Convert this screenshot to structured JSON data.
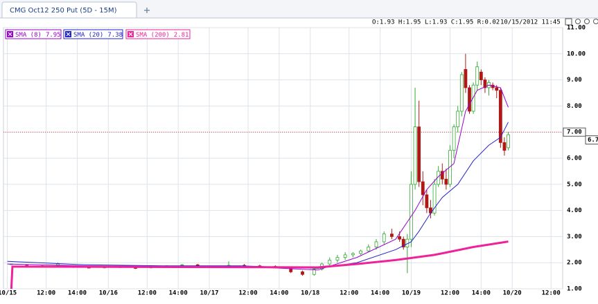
{
  "chart_data": {
    "type": "candlestick",
    "title": "CMG Oct12 250 Put (5D - 15M)",
    "info": "O:1.93 H:1.95 L:1.93 C:1.95 R:0.02",
    "date": "10/15/2012 11:45",
    "x": [
      1,
      5,
      9,
      13,
      17,
      21,
      25,
      29,
      33,
      37,
      41,
      45,
      49,
      53,
      57,
      61,
      65,
      69,
      73,
      76,
      79,
      81,
      83,
      85,
      87,
      89,
      91,
      93,
      95,
      97,
      99,
      101,
      102,
      103,
      104,
      105,
      106,
      107,
      108,
      109,
      110,
      111,
      112,
      113,
      114,
      115,
      116,
      117,
      118,
      119,
      120,
      121,
      122,
      123,
      124,
      125,
      126,
      127,
      128,
      129
    ],
    "open": [
      1.93,
      1.9,
      1.88,
      1.9,
      1.85,
      1.82,
      1.8,
      1.84,
      1.82,
      1.8,
      1.86,
      1.9,
      1.92,
      1.84,
      1.86,
      1.9,
      1.88,
      1.86,
      1.75,
      1.65,
      1.55,
      1.75,
      1.95,
      2.1,
      2.2,
      2.3,
      2.35,
      2.45,
      2.6,
      2.8,
      3.1,
      3.0,
      2.9,
      2.6,
      2.9,
      5.0,
      7.2,
      5.1,
      4.6,
      4.1,
      3.9,
      5.0,
      5.5,
      5.2,
      5.0,
      6.3,
      7.2,
      7.8,
      9.4,
      8.7,
      7.8,
      8.8,
      9.3,
      9.0,
      8.7,
      8.8,
      8.7,
      8.6,
      6.6,
      6.4
    ],
    "high": [
      1.95,
      1.92,
      1.9,
      2.0,
      1.9,
      1.85,
      1.86,
      1.88,
      1.85,
      1.9,
      1.9,
      1.95,
      1.95,
      1.88,
      2.05,
      1.95,
      1.92,
      1.9,
      1.8,
      1.7,
      1.8,
      2.0,
      2.2,
      2.3,
      2.4,
      2.4,
      2.5,
      2.7,
      2.9,
      3.2,
      3.3,
      3.2,
      3.0,
      3.1,
      5.5,
      8.7,
      8.2,
      5.5,
      4.8,
      4.4,
      5.2,
      5.7,
      5.8,
      5.6,
      6.5,
      7.3,
      8.0,
      9.3,
      10.0,
      8.8,
      8.9,
      9.7,
      9.4,
      9.1,
      9.0,
      8.9,
      8.8,
      8.7,
      6.8,
      7.0
    ],
    "low": [
      1.93,
      1.85,
      1.82,
      1.88,
      1.8,
      1.78,
      1.78,
      1.8,
      1.76,
      1.78,
      1.84,
      1.86,
      1.8,
      1.8,
      1.84,
      1.85,
      1.84,
      1.8,
      1.6,
      1.5,
      1.5,
      1.7,
      1.9,
      2.0,
      2.1,
      2.2,
      2.3,
      2.4,
      2.5,
      2.7,
      2.9,
      2.8,
      2.5,
      1.6,
      2.6,
      4.8,
      4.9,
      4.2,
      3.9,
      3.7,
      3.8,
      4.9,
      5.0,
      4.8,
      4.9,
      6.0,
      7.0,
      7.6,
      8.5,
      7.7,
      7.7,
      8.6,
      8.8,
      8.5,
      8.4,
      8.6,
      8.3,
      6.4,
      6.1,
      6.3
    ],
    "close": [
      1.95,
      1.88,
      1.85,
      1.95,
      1.82,
      1.8,
      1.84,
      1.82,
      1.78,
      1.86,
      1.88,
      1.92,
      1.84,
      1.86,
      1.9,
      1.88,
      1.86,
      1.82,
      1.65,
      1.55,
      1.75,
      1.95,
      2.1,
      2.2,
      2.3,
      2.35,
      2.45,
      2.6,
      2.8,
      3.1,
      3.0,
      2.9,
      2.6,
      2.9,
      5.0,
      7.2,
      5.1,
      4.6,
      4.1,
      3.9,
      5.0,
      5.5,
      5.2,
      5.0,
      6.3,
      7.2,
      7.8,
      9.2,
      8.7,
      7.8,
      8.8,
      9.5,
      9.0,
      8.7,
      8.9,
      8.7,
      8.6,
      6.6,
      6.3,
      6.9
    ],
    "up_color": "#33aa33",
    "down_color": "#b01818",
    "series": [
      {
        "name": "SMA (8)",
        "last": 7.95,
        "color": "#9900cc",
        "width": 1,
        "x": [
          0,
          20,
          40,
          60,
          80,
          90,
          100,
          105,
          108,
          111,
          115,
          118,
          121,
          124,
          127,
          129
        ],
        "values": [
          1.95,
          1.88,
          1.86,
          1.86,
          1.72,
          2.2,
          2.9,
          4.0,
          4.8,
          5.3,
          5.8,
          7.8,
          8.6,
          8.8,
          8.7,
          7.95
        ]
      },
      {
        "name": "SMA (20)",
        "last": 7.38,
        "color": "#2222cc",
        "width": 1,
        "x": [
          0,
          20,
          40,
          60,
          80,
          90,
          100,
          104,
          106,
          109,
          112,
          116,
          120,
          124,
          127,
          129
        ],
        "values": [
          2.05,
          1.92,
          1.88,
          1.88,
          1.78,
          2.0,
          2.5,
          2.8,
          3.2,
          3.9,
          4.5,
          5.0,
          5.9,
          6.5,
          6.8,
          7.38
        ]
      },
      {
        "name": "SMA (200)",
        "last": 2.81,
        "color": "#ee2299",
        "width": 3,
        "x": [
          1,
          1.3,
          3,
          80,
          90,
          100,
          110,
          120,
          129
        ],
        "values": [
          0.9,
          1.85,
          1.85,
          1.82,
          1.95,
          2.1,
          2.3,
          2.6,
          2.81
        ]
      }
    ],
    "price_line": {
      "value": 7,
      "label": "7.00"
    },
    "last_price": 6.7,
    "xlim": [
      -1,
      143
    ],
    "xticks": [
      {
        "value": 0,
        "label": "10/15"
      },
      {
        "value": 10,
        "label": "12:00"
      },
      {
        "value": 18,
        "label": "14:00"
      },
      {
        "value": 26,
        "label": "10/16"
      },
      {
        "value": 36,
        "label": "12:00"
      },
      {
        "value": 44,
        "label": "14:00"
      },
      {
        "value": 52,
        "label": "10/17"
      },
      {
        "value": 62,
        "label": "12:00"
      },
      {
        "value": 70,
        "label": "14:00"
      },
      {
        "value": 78,
        "label": "10/18"
      },
      {
        "value": 88,
        "label": "12:00"
      },
      {
        "value": 96,
        "label": "14:00"
      },
      {
        "value": 104,
        "label": "10/19"
      },
      {
        "value": 114,
        "label": "12:00"
      },
      {
        "value": 122,
        "label": "14:00"
      },
      {
        "value": 130,
        "label": "10/20"
      },
      {
        "value": 140,
        "label": "12:00"
      }
    ],
    "ylim": [
      1,
      11
    ],
    "yticks": [
      {
        "value": 1,
        "label": "1.00"
      },
      {
        "value": 2,
        "label": "2.00"
      },
      {
        "value": 3,
        "label": "3.00"
      },
      {
        "value": 4,
        "label": "4.00"
      },
      {
        "value": 5,
        "label": "5.00"
      },
      {
        "value": 6,
        "label": "6.00"
      },
      {
        "value": 7,
        "label": "7.00"
      },
      {
        "value": 8,
        "label": "8.00"
      },
      {
        "value": 9,
        "label": "9.00"
      },
      {
        "value": 10,
        "label": "10.00"
      },
      {
        "value": 11,
        "label": "11.00"
      }
    ],
    "grid": true
  }
}
